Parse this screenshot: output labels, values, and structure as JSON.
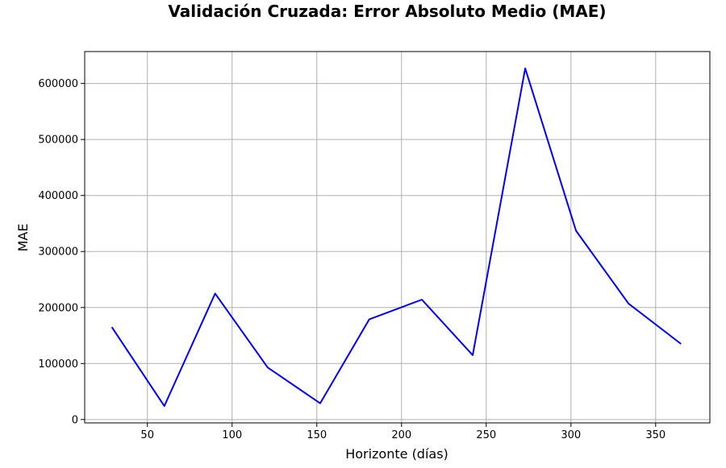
{
  "chart_data": {
    "type": "line",
    "title": "Validación Cruzada: Error Absoluto Medio (MAE)",
    "xlabel": "Horizonte (días)",
    "ylabel": "MAE",
    "xlim": [
      13,
      382
    ],
    "ylim": [
      -6000,
      657000
    ],
    "x_ticks": [
      50,
      100,
      150,
      200,
      250,
      300,
      350
    ],
    "y_ticks": [
      0,
      100000,
      200000,
      300000,
      400000,
      500000,
      600000
    ],
    "x_tick_labels": [
      "50",
      "100",
      "150",
      "200",
      "250",
      "300",
      "350"
    ],
    "y_tick_labels": [
      "0",
      "100000",
      "200000",
      "300000",
      "400000",
      "500000",
      "600000"
    ],
    "grid": true,
    "series": [
      {
        "color": "#0000ff",
        "x": [
          29,
          60,
          90,
          121,
          152,
          181,
          212,
          242,
          273,
          303,
          334,
          365
        ],
        "y": [
          165000,
          24000,
          225000,
          93000,
          29000,
          179000,
          214000,
          115000,
          627000,
          337000,
          207000,
          135000
        ]
      }
    ]
  }
}
